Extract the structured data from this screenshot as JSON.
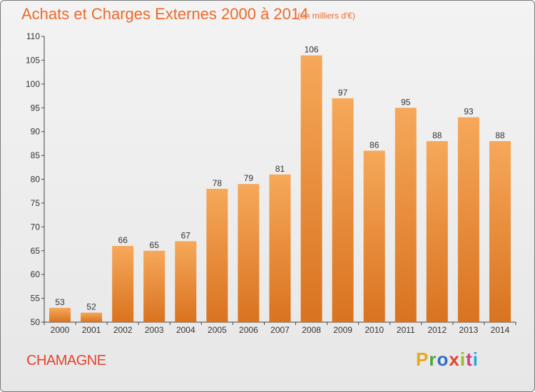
{
  "header": {
    "title": "Achats et Charges Externes 2000 à 2014",
    "subtitle": "(en milliers d'€)"
  },
  "footer": {
    "city": "CHAMAGNE",
    "logo_letters": [
      "P",
      "r",
      "o",
      "x",
      "i",
      "t",
      "i"
    ]
  },
  "colors": {
    "title": "#ec6a2c",
    "city": "#e2452f",
    "bar_light": "#f6a85a",
    "bar_dark": "#d9731f"
  },
  "chart_data": {
    "type": "bar",
    "categories": [
      "2000",
      "2001",
      "2002",
      "2003",
      "2004",
      "2005",
      "2006",
      "2007",
      "2008",
      "2009",
      "2010",
      "2011",
      "2012",
      "2013",
      "2014"
    ],
    "values": [
      53,
      52,
      66,
      65,
      67,
      78,
      79,
      81,
      106,
      97,
      86,
      95,
      88,
      93,
      88
    ],
    "title": "Achats et Charges Externes 2000 à 2014",
    "xlabel": "",
    "ylabel": "",
    "ylim": [
      50,
      110
    ],
    "yticks": [
      50,
      55,
      60,
      65,
      70,
      75,
      80,
      85,
      90,
      95,
      100,
      105,
      110
    ],
    "grid": false
  }
}
